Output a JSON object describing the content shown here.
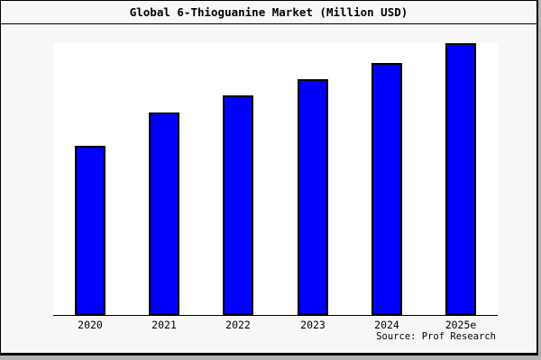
{
  "window": {
    "title": "Global 6-Thioguanine Market (Million USD)"
  },
  "chart_data": {
    "type": "bar",
    "title": "Global 6-Thioguanine Market (Million USD)",
    "categories": [
      "2020",
      "2021",
      "2022",
      "2023",
      "2024",
      "2025e"
    ],
    "values": [
      62.3,
      74.5,
      80.8,
      86.8,
      92.7,
      100
    ],
    "value_scale_note": "no y-axis ticks shown; values are relative estimates indexed to 2025e = 100",
    "xlabel": "",
    "ylabel": "",
    "ylim": [
      0,
      100
    ],
    "grid": false,
    "legend": false,
    "colors": {
      "bar_fill": "#0000ff",
      "bar_edge": "#000000",
      "plot_background": "#ffffff",
      "figure_background": "#f7f7f7",
      "frame_border": "#000000"
    }
  },
  "source": {
    "label": "Source: Prof Research"
  }
}
